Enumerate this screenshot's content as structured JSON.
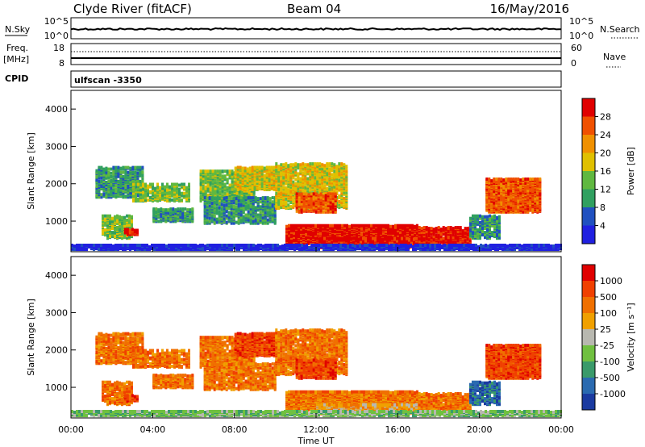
{
  "header": {
    "station": "Clyde River (fitACF)",
    "beam": "Beam 04",
    "date": "16/May/2016"
  },
  "status_panels": {
    "nsky_label": "N.Sky",
    "nsky_ticks": [
      "10^5",
      "10^0"
    ],
    "nsearch_label": "N.Search",
    "nsearch_ticks": [
      "10^5",
      "10^0"
    ],
    "freq_label": "Freq.",
    "freq_unit": "[MHz]",
    "freq_ticks": [
      "18",
      "8"
    ],
    "nave_label": "Nave",
    "nave_ticks": [
      "60",
      "0"
    ],
    "cpid_label": "CPID",
    "cpid_value": "ulfscan -3350"
  },
  "colors": {
    "power_scale": [
      "#2020e0",
      "#2050c0",
      "#30a060",
      "#60b840",
      "#e0c000",
      "#f09000",
      "#f05000",
      "#e00000"
    ],
    "velocity_scale": [
      "#1a3aa0",
      "#2a6ab0",
      "#3a9a6a",
      "#70c040",
      "#b8b8b0",
      "#f0a000",
      "#f07000",
      "#f04000",
      "#e00000"
    ]
  },
  "chart_data": [
    {
      "type": "heatmap",
      "name": "power",
      "ylabel": "Slant Range [km]",
      "xlabel": "Time UT",
      "x_ticks": [
        "00:00",
        "04:00",
        "08:00",
        "12:00",
        "16:00",
        "20:00",
        "00:00"
      ],
      "y_ticks": [
        "1000",
        "2000",
        "3000",
        "4000"
      ],
      "xlim_hours": [
        0,
        24
      ],
      "ylim_km": [
        180,
        4500
      ],
      "colorbar": {
        "label": "Power [dB]",
        "ticks": [
          "4",
          "8",
          "12",
          "16",
          "20",
          "24",
          "28"
        ],
        "range": [
          0,
          30
        ]
      }
    },
    {
      "type": "heatmap",
      "name": "velocity",
      "ylabel": "Slant Range [km]",
      "xlabel": "Time UT",
      "x_ticks": [
        "00:00",
        "04:00",
        "08:00",
        "12:00",
        "16:00",
        "20:00",
        "00:00"
      ],
      "y_ticks": [
        "1000",
        "2000",
        "3000",
        "4000"
      ],
      "xlim_hours": [
        0,
        24
      ],
      "ylim_km": [
        180,
        4500
      ],
      "colorbar": {
        "label": "Velocity [m s⁻¹]",
        "ticks": [
          "1000",
          "500",
          "100",
          "25",
          "-25",
          "-100",
          "-500",
          "-1000"
        ]
      }
    }
  ],
  "bottom_axis_label": "Time UT"
}
